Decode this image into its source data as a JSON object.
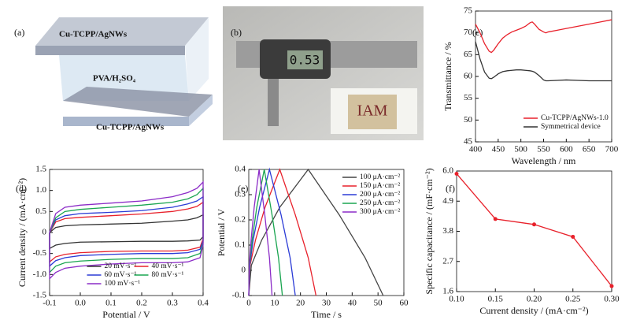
{
  "schematic": {
    "panel": "(a)",
    "top_electrode": "Cu-TCPP/AgNWs",
    "electrolyte": "PVA/H₂SO₄",
    "bottom_electrode": "Cu-TCPP/AgNWs"
  },
  "photo": {
    "panel": "(b)",
    "display": "0.53",
    "sample_text": "IAM"
  },
  "chart_data": [
    {
      "type": "line",
      "label": "(c)",
      "x_label": "Wavelength / nm",
      "y_label": "Transmittance / %",
      "x": [
        400,
        410,
        420,
        430,
        435,
        440,
        450,
        460,
        470,
        480,
        490,
        500,
        510,
        520,
        525,
        530,
        540,
        550,
        555,
        560,
        580,
        600,
        625,
        650,
        675,
        700
      ],
      "series": [
        {
          "name": "Cu-TCPP/AgNWs-1.0",
          "color": "#e8212b",
          "values": [
            72,
            70,
            67.5,
            65.8,
            65.5,
            66,
            67.5,
            68.8,
            69.6,
            70.2,
            70.6,
            71,
            71.5,
            72.3,
            72.5,
            72,
            70.8,
            70.2,
            70,
            70.2,
            70.6,
            71,
            71.5,
            72,
            72.5,
            73
          ]
        },
        {
          "name": "Symmetrical device",
          "color": "#333333",
          "values": [
            68,
            64,
            61,
            59.6,
            59.5,
            59.8,
            60.6,
            61.1,
            61.3,
            61.4,
            61.5,
            61.5,
            61.4,
            61.3,
            61.2,
            61,
            60.2,
            59.2,
            59,
            59,
            59.1,
            59.2,
            59.1,
            59,
            59,
            59
          ]
        }
      ],
      "xlim": [
        400,
        700
      ],
      "xticks": [
        400,
        450,
        500,
        550,
        600,
        650,
        700
      ],
      "ylim": [
        45,
        75
      ],
      "yticks": [
        45,
        50,
        55,
        60,
        65,
        70,
        75
      ],
      "legend": "lower right"
    },
    {
      "type": "line",
      "label": "(d)",
      "x_label": "Potential / V",
      "y_label": "Current density / (mA·cm⁻²)",
      "x": [
        -0.1,
        -0.08,
        -0.05,
        0,
        0.1,
        0.2,
        0.3,
        0.35,
        0.38,
        0.4,
        0.4,
        0.39,
        0.35,
        0.3,
        0.2,
        0.1,
        0,
        -0.05,
        -0.08,
        -0.1,
        -0.1
      ],
      "series": [
        {
          "name": "20 mV·s⁻¹",
          "color": "#333333",
          "values": [
            0,
            0.12,
            0.16,
            0.18,
            0.2,
            0.22,
            0.27,
            0.3,
            0.35,
            0.42,
            -0.1,
            -0.18,
            -0.2,
            -0.21,
            -0.21,
            -0.22,
            -0.23,
            -0.26,
            -0.3,
            -0.38,
            0
          ]
        },
        {
          "name": "40 mV·s⁻¹",
          "color": "#e8212b",
          "values": [
            0,
            0.25,
            0.33,
            0.36,
            0.4,
            0.44,
            0.5,
            0.56,
            0.62,
            0.72,
            -0.15,
            -0.35,
            -0.42,
            -0.44,
            -0.44,
            -0.45,
            -0.48,
            -0.52,
            -0.58,
            -0.7,
            0
          ]
        },
        {
          "name": "60 mV·s⁻¹",
          "color": "#2b3bd6",
          "values": [
            0,
            0.3,
            0.4,
            0.45,
            0.48,
            0.52,
            0.6,
            0.68,
            0.75,
            0.85,
            -0.2,
            -0.4,
            -0.48,
            -0.5,
            -0.5,
            -0.52,
            -0.55,
            -0.6,
            -0.67,
            -0.8,
            0
          ]
        },
        {
          "name": "80 mV·s⁻¹",
          "color": "#1aa550",
          "values": [
            0,
            0.35,
            0.5,
            0.55,
            0.6,
            0.65,
            0.72,
            0.8,
            0.9,
            1.05,
            -0.25,
            -0.5,
            -0.6,
            -0.62,
            -0.62,
            -0.64,
            -0.68,
            -0.72,
            -0.8,
            -0.95,
            0
          ]
        },
        {
          "name": "100 mV·s⁻¹",
          "color": "#8b2bc7",
          "values": [
            0,
            0.45,
            0.6,
            0.65,
            0.7,
            0.75,
            0.85,
            0.95,
            1.05,
            1.2,
            -0.3,
            -0.6,
            -0.7,
            -0.72,
            -0.72,
            -0.75,
            -0.8,
            -0.85,
            -0.95,
            -1.1,
            0
          ]
        }
      ],
      "xlim": [
        -0.1,
        0.4
      ],
      "xticks": [
        -0.1,
        {
          "value": 0,
          "label": "0.0"
        },
        0.1,
        0.2,
        0.3,
        0.4
      ],
      "ylim": [
        -1.5,
        1.5
      ],
      "yticks": [
        -1.5,
        {
          "value": -1,
          "label": "-1.0"
        },
        -0.5,
        0,
        0.5,
        {
          "value": 1,
          "label": "1.0"
        },
        1.5
      ],
      "legend": "lower center"
    },
    {
      "type": "line",
      "label": "(e)",
      "x_label": "Time / s",
      "y_label": "Potential / V",
      "series": [
        {
          "name": "100 μA·cm⁻²",
          "color": "#444444",
          "x": [
            0,
            1,
            5,
            12,
            23,
            35,
            45,
            52
          ],
          "values": [
            -0.1,
            0.02,
            0.12,
            0.25,
            0.4,
            0.22,
            0.05,
            -0.1
          ]
        },
        {
          "name": "150 μA·cm⁻²",
          "color": "#e8212b",
          "x": [
            0,
            0.5,
            2.6,
            6.3,
            12,
            18,
            23,
            26
          ],
          "values": [
            -0.1,
            0.02,
            0.12,
            0.25,
            0.4,
            0.22,
            0.05,
            -0.1
          ]
        },
        {
          "name": "200 μA·cm⁻²",
          "color": "#2b3bd6",
          "x": [
            0,
            0.4,
            1.7,
            4.2,
            8,
            12.5,
            16,
            18
          ],
          "values": [
            -0.1,
            0.02,
            0.12,
            0.25,
            0.4,
            0.22,
            0.05,
            -0.1
          ]
        },
        {
          "name": "250 μA·cm⁻²",
          "color": "#1aa550",
          "x": [
            0,
            0.3,
            1.3,
            3.1,
            6,
            9,
            11.5,
            13
          ],
          "values": [
            -0.1,
            0.02,
            0.12,
            0.25,
            0.4,
            0.22,
            0.05,
            -0.1
          ]
        },
        {
          "name": "300 μA·cm⁻²",
          "color": "#8b2bc7",
          "x": [
            0,
            0.2,
            0.9,
            2.1,
            4,
            6.2,
            8,
            9
          ],
          "values": [
            -0.1,
            0.02,
            0.12,
            0.25,
            0.4,
            0.22,
            0.05,
            -0.1
          ]
        }
      ],
      "xlim": [
        0,
        60
      ],
      "xticks": [
        0,
        10,
        20,
        30,
        40,
        50,
        60
      ],
      "ylim": [
        -0.1,
        0.4
      ],
      "yticks": [
        -0.1,
        0,
        0.1,
        0.2,
        0.3,
        0.4
      ],
      "legend": "upper right"
    },
    {
      "type": "line",
      "label": "(f)",
      "x_label": "Current density / (mA·cm⁻²)",
      "y_label": "Specific capacitance / (mF·cm⁻²)",
      "x": [
        0.1,
        0.15,
        0.2,
        0.25,
        0.3
      ],
      "series": [
        {
          "color": "#e8212b",
          "values": [
            5.9,
            4.25,
            4.05,
            3.6,
            1.8
          ]
        }
      ],
      "markers": true,
      "xlim": [
        0.1,
        0.3
      ],
      "xticks": [
        {
          "value": 0.1,
          "label": "0.10"
        },
        0.15,
        {
          "value": 0.2,
          "label": "0.20"
        },
        0.25,
        {
          "value": 0.3,
          "label": "0.30"
        }
      ],
      "ylim": [
        1.6,
        6
      ],
      "yticks": [
        1.6,
        2.7,
        3.8,
        4.9,
        {
          "value": 6,
          "label": "6.0"
        }
      ]
    }
  ]
}
